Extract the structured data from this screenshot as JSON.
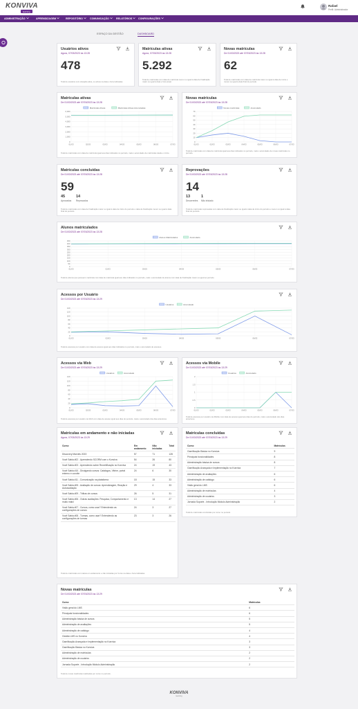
{
  "header": {
    "logo": "KONVIVA",
    "logo_tag": "learning",
    "user_name": "Rafael",
    "user_role": "Perfil: Administrador"
  },
  "nav": [
    "ADMINISTRAÇÃO",
    "APRENDIZAGEM",
    "REPOSITÓRIO",
    "COMUNICAÇÃO",
    "RELATÓRIOS",
    "CONFIGURAÇÕES"
  ],
  "tabs": [
    "ESPAÇO DA GESTÃO",
    "DASHBOARD"
  ],
  "cards": [
    {
      "type": "kpi",
      "title": "Usuários ativos",
      "subtitle": "Agora, 07/03/2023 às 13:28",
      "value": "478",
      "note": "Total de usuários com situação ativa, ou ativos na data e hora indicadas."
    },
    {
      "type": "kpi",
      "title": "Matrículas ativas",
      "subtitle": "Agora, 07/03/2023 às 13:28",
      "value": "5.292",
      "note": "Total de matrículas com data de matrícula menor ou igual à data de finalização maior ou igual à data e hora atual."
    },
    {
      "type": "kpi",
      "title": "Novas matrículas",
      "subtitle": "De 01/03/2023 até 07/03/2023 às 13:28",
      "value": "62",
      "note": "Total de matrículas com data de matrícula maior ou igual à data de início e menor ou igual à data final do período."
    },
    {
      "type": "line",
      "title": "Matrículas ativas",
      "subtitle": "De 01/03/2023 até 07/03/2023 às 13:28",
      "categories": [
        "01/03",
        "02/03",
        "03/03",
        "04/03",
        "05/03",
        "06/03",
        "07/03"
      ],
      "series": [
        {
          "name": "Matrículas Ativas",
          "color": "#7b98e8",
          "values": [
            5240,
            5250,
            5260,
            5270,
            5280,
            5285,
            5292
          ]
        },
        {
          "name": "Matrículas Ativas Acumuladas",
          "color": "#86d9b4",
          "values": [
            5250,
            5260,
            5270,
            5280,
            5285,
            5290,
            5292
          ]
        }
      ],
      "ylim": [
        0,
        6000
      ],
      "yticks": [
        0,
        {
          "value": 1000,
          "label": "1,000"
        },
        {
          "value": 2000,
          "label": "2,000"
        },
        {
          "value": 3000,
          "label": "3,000"
        },
        {
          "value": 4000,
          "label": "4,000"
        },
        {
          "value": 5000,
          "label": "5,000"
        },
        {
          "value": 6000,
          "label": "6,000"
        }
      ],
      "note": "Total de matrículas com data de matrícula igual aos dias indicados no período, mais o acumulado de matrículas desde o início."
    },
    {
      "type": "line",
      "title": "Novas matrículas",
      "subtitle": "De 01/03/2023 até 07/03/2023 às 13:28",
      "categories": [
        "01/03",
        "02/03",
        "03/03",
        "04/03",
        "05/03",
        "06/03",
        "07/03"
      ],
      "series": [
        {
          "name": "Novas matrículas",
          "color": "#7b98e8",
          "values": [
            10,
            16,
            20,
            13,
            3,
            0,
            0
          ]
        },
        {
          "name": "Acumulado",
          "color": "#86d9b4",
          "values": [
            10,
            26,
            46,
            59,
            62,
            62,
            62
          ]
        }
      ],
      "ylim": [
        0,
        70
      ],
      "yticks": [
        0,
        10,
        20,
        30,
        40,
        50,
        60,
        70
      ],
      "note": "Total de matrículas com data de matrícula igual aos dias indicados no período, mais o acumulado de novas matrículas no período."
    },
    {
      "type": "kpi",
      "title": "Matrículas concluídas",
      "subtitle": "De 01/03/2023 até 07/03/2023 às 13:28",
      "value": "59",
      "breakdown": [
        {
          "value": "45",
          "label": "Aprovados"
        },
        {
          "value": "14",
          "label": "Reprovados"
        }
      ],
      "note": "Total de matrículas com data de finalização maior ou igual à data de início do período e data de finalização menor ou igual à data final do período."
    },
    {
      "type": "kpi",
      "title": "Reprovações",
      "subtitle": "De 01/03/2023 até 07/03/2023 às 13:28",
      "value": "14",
      "breakdown": [
        {
          "value": "13",
          "label": "Decorrentes"
        },
        {
          "value": "1",
          "label": "Não iniciado"
        }
      ],
      "note": "Total de matrículas reprovadas com data de finalização maior ou igual à data de início do período e menor ou igual à data final do período."
    },
    {
      "type": "line",
      "title": "Alunos matriculados",
      "subtitle": "De 01/03/2023 até 07/03/2023 às 13:28",
      "categories": [
        "01/03",
        "02/03",
        "03/03",
        "04/03",
        "05/03",
        "06/03",
        "07/03"
      ],
      "series": [
        {
          "name": "Alunos Matriculados",
          "color": "#7b98e8",
          "values": [
            396,
            398,
            400,
            401,
            402,
            403,
            403
          ]
        },
        {
          "name": "Acumulado",
          "color": "#86d9b4",
          "values": [
            400,
            402,
            405,
            407,
            408,
            409,
            409
          ]
        }
      ],
      "ylim": [
        0,
        450
      ],
      "yticks": [
        0,
        50,
        100,
        150,
        200,
        250,
        300,
        350,
        400,
        450
      ],
      "note": "Total de alunos que possuem matrícula com data de matrícula igual aos dias indicados no período, mais o acumulado de alunos com data de finalização maior ou igual ao período."
    },
    {
      "type": "line",
      "title": "Acessos por Usuário",
      "subtitle": "De 01/03/2023 até 07/03/2023 às 13:29",
      "categories": [
        "01/03",
        "02/03",
        "03/03",
        "04/03",
        "05/03",
        "06/03",
        "07/03"
      ],
      "series": [
        {
          "name": "Usuários",
          "color": "#7b98e8",
          "values": [
            18,
            20,
            12,
            8,
            10,
            100,
            5
          ]
        },
        {
          "name": "Acumulado",
          "color": "#86d9b4",
          "values": [
            20,
            25,
            30,
            35,
            40,
            125,
            130
          ]
        }
      ],
      "ylim": [
        0,
        140
      ],
      "yticks": [
        0,
        20,
        40,
        60,
        80,
        100,
        120,
        140
      ],
      "note": "Total de acessos por usuário com data de acesso igual aos dias indicados no período, mais o acumulado de acessos."
    },
    {
      "type": "line",
      "title": "Acessos via Web",
      "subtitle": "De 01/03/2023 até 07/03/2023 às 13:29",
      "categories": [
        "01/03",
        "02/03",
        "03/03",
        "04/03",
        "05/03",
        "06/03",
        "07/03"
      ],
      "series": [
        {
          "name": "Usuários",
          "color": "#7b98e8",
          "values": [
            15,
            18,
            10,
            8,
            10,
            98,
            5
          ]
        },
        {
          "name": "Acumulado",
          "color": "#86d9b4",
          "values": [
            18,
            22,
            28,
            32,
            38,
            120,
            125
          ]
        }
      ],
      "ylim": [
        0,
        140
      ],
      "yticks": [
        0,
        20,
        40,
        60,
        80,
        100,
        120,
        140
      ],
      "note": "Total de acessos por usuário via Web com data de acesso igual aos dias do período, mais o acumulado dos dias anteriores."
    },
    {
      "type": "line",
      "title": "Acessos via Mobile",
      "subtitle": "De 01/03/2023 até 07/03/2023 às 13:29",
      "categories": [
        "01/03",
        "02/03",
        "03/03",
        "04/03",
        "05/03",
        "06/03",
        "07/03"
      ],
      "series": [
        {
          "name": "Usuários",
          "color": "#7b98e8",
          "values": [
            0,
            0,
            0,
            0,
            0,
            1,
            0
          ]
        },
        {
          "name": "Acumulado",
          "color": "#86d9b4",
          "values": [
            0,
            0,
            0,
            0,
            0,
            1,
            1
          ]
        }
      ],
      "ylim": [
        0,
        2
      ],
      "yticks": [
        0,
        0.5,
        1,
        1.5,
        2
      ],
      "note": "Total de acessos por usuário via Mobile com data de acesso igual aos dias do período, mais o acumulado dos dias anteriores."
    },
    {
      "type": "table",
      "title": "Matrículas em andamento e não iniciadas",
      "subtitle": "Agora, 07/03/2023 às 13:29",
      "columns": [
        "Curso",
        "Em andamento",
        "Não iniciadas",
        "Total"
      ],
      "rows": [
        [
          "Discovery Marvels 2023",
          "57",
          "71",
          "128"
        ],
        [
          "Você Sabia #02 - Aprendendo SCORM com o Konviva",
          "54",
          "26",
          "80"
        ],
        [
          "Você Sabia #03 - Aprendendo sobre Recertificação no Konviva",
          "24",
          "19",
          "43"
        ],
        [
          "Você Sabia #10 - Divulgando cursos: Catálogos, Vitrine, portal externo e convite",
          "24",
          "6",
          "30"
        ],
        [
          "Você Sabia #11 - Comunicação na plataforma",
          "18",
          "15",
          "33"
        ],
        [
          "Você Sabia #05 - Avaliação de cursos: Aprendizagem, Reação e Autoavaliação",
          "29",
          "4",
          "33"
        ],
        [
          "Você Sabia #09 - Trilhas de cursos",
          "26",
          "5",
          "31"
        ],
        [
          "Você Sabia #06 - Outras avaliações: Pesquisa, Comportamento e muito mais!",
          "13",
          "14",
          "27"
        ],
        [
          "Você Sabia #07 - Cursos, como usar? Entendendo as configurações de cursos",
          "24",
          "3",
          "27"
        ],
        [
          "Você Sabia #08 - Turmas, como usar? Entendendo as configurações de turmas",
          "23",
          "3",
          "26"
        ]
      ],
      "note": "Total de matrículas com status em andamento e não iniciadas por Curso na data e hora indicadas."
    },
    {
      "type": "table",
      "title": "Matrículas concluídas",
      "subtitle": "De 01/03/2023 até 07/03/2023 às 13:29",
      "columns": [
        "Curso",
        "Matrículas"
      ],
      "rows": [
        [
          "Gamificação Básica no Konviva",
          "9"
        ],
        [
          "Principais funcionalidades",
          "8"
        ],
        [
          "Administração básica de cursos",
          "8"
        ],
        [
          "Gamificação Avançada e Implementação no Konviva",
          "7"
        ],
        [
          "Administração de avaliações",
          "6"
        ],
        [
          "Administração de catálogo",
          "6"
        ],
        [
          "Visão geral do LMS",
          "6"
        ],
        [
          "Administração de matrículas",
          "4"
        ],
        [
          "Administração de usuários",
          "3"
        ],
        [
          "Jornada Suporte - Introdução Módulo Administração",
          "2"
        ]
      ],
      "note": "Total de matrículas concluídas por curso no período."
    },
    {
      "type": "table",
      "title": "Novas matrículas",
      "subtitle": "De 01/03/2023 até 07/03/2023 às 13:29",
      "columns": [
        "Curso",
        "Matrículas"
      ],
      "rows": [
        [
          "Visão geral do LMS",
          "6"
        ],
        [
          "Principais funcionalidades",
          "6"
        ],
        [
          "Administração básica de cursos",
          "5"
        ],
        [
          "Administração de avaliações",
          "5"
        ],
        [
          "Administração de catálogo",
          "4"
        ],
        [
          "Gestão LMS no Konviva",
          "4"
        ],
        [
          "Gamificação Avançada e Implementação no Konviva",
          "3"
        ],
        [
          "Gamificação Básica no Konviva",
          "3"
        ],
        [
          "Administração de matrículas",
          "2"
        ],
        [
          "Administração de usuários",
          "2"
        ],
        [
          "Jornada Suporte - Introdução Módulo Administração",
          "2"
        ]
      ],
      "note": "Total de novas matrículas realizadas por curso no período."
    }
  ],
  "footer": {
    "logo": "KONVIVA",
    "logo_tag": "learning"
  }
}
